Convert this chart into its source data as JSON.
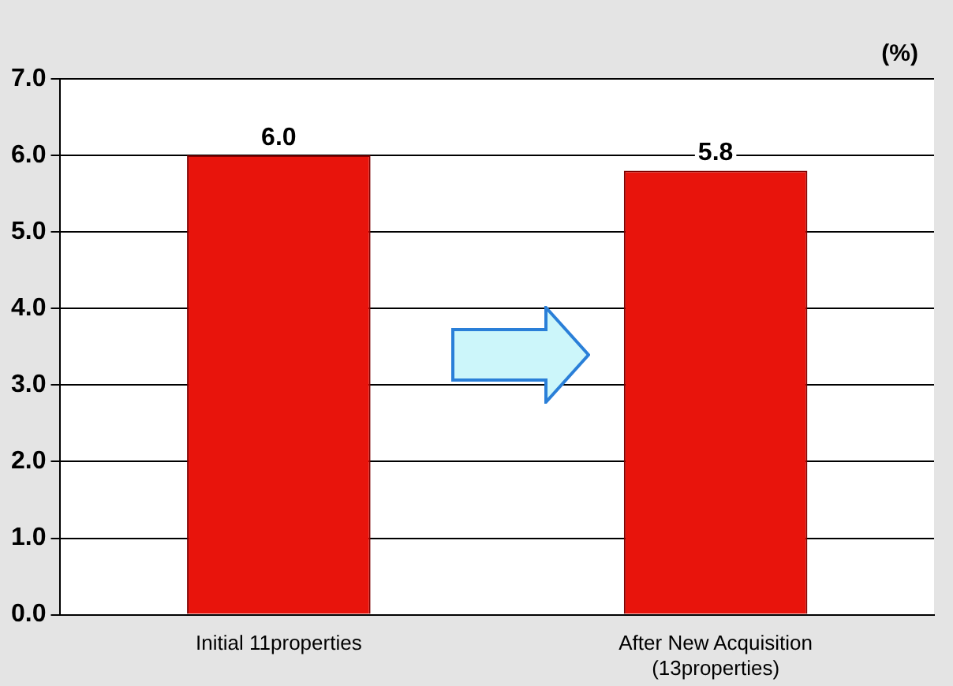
{
  "chart_data": {
    "type": "bar",
    "ylabel": "(%)",
    "categories": [
      "Initial 11properties",
      "After New Acquisition\n(13properties)"
    ],
    "values": [
      6.0,
      5.8
    ],
    "color": "#e8140c",
    "value_labels": [
      "6.0",
      "5.8"
    ],
    "ylim": [
      0,
      7
    ],
    "yticks": [
      {
        "value": 0,
        "label": "0.0"
      },
      {
        "value": 1,
        "label": "1.0"
      },
      {
        "value": 2,
        "label": "2.0"
      },
      {
        "value": 3,
        "label": "3.0"
      },
      {
        "value": 4,
        "label": "4.0"
      },
      {
        "value": 5,
        "label": "5.0"
      },
      {
        "value": 6,
        "label": "6.0"
      },
      {
        "value": 7,
        "label": "7.0"
      }
    ],
    "grid": "y",
    "legend": false
  }
}
